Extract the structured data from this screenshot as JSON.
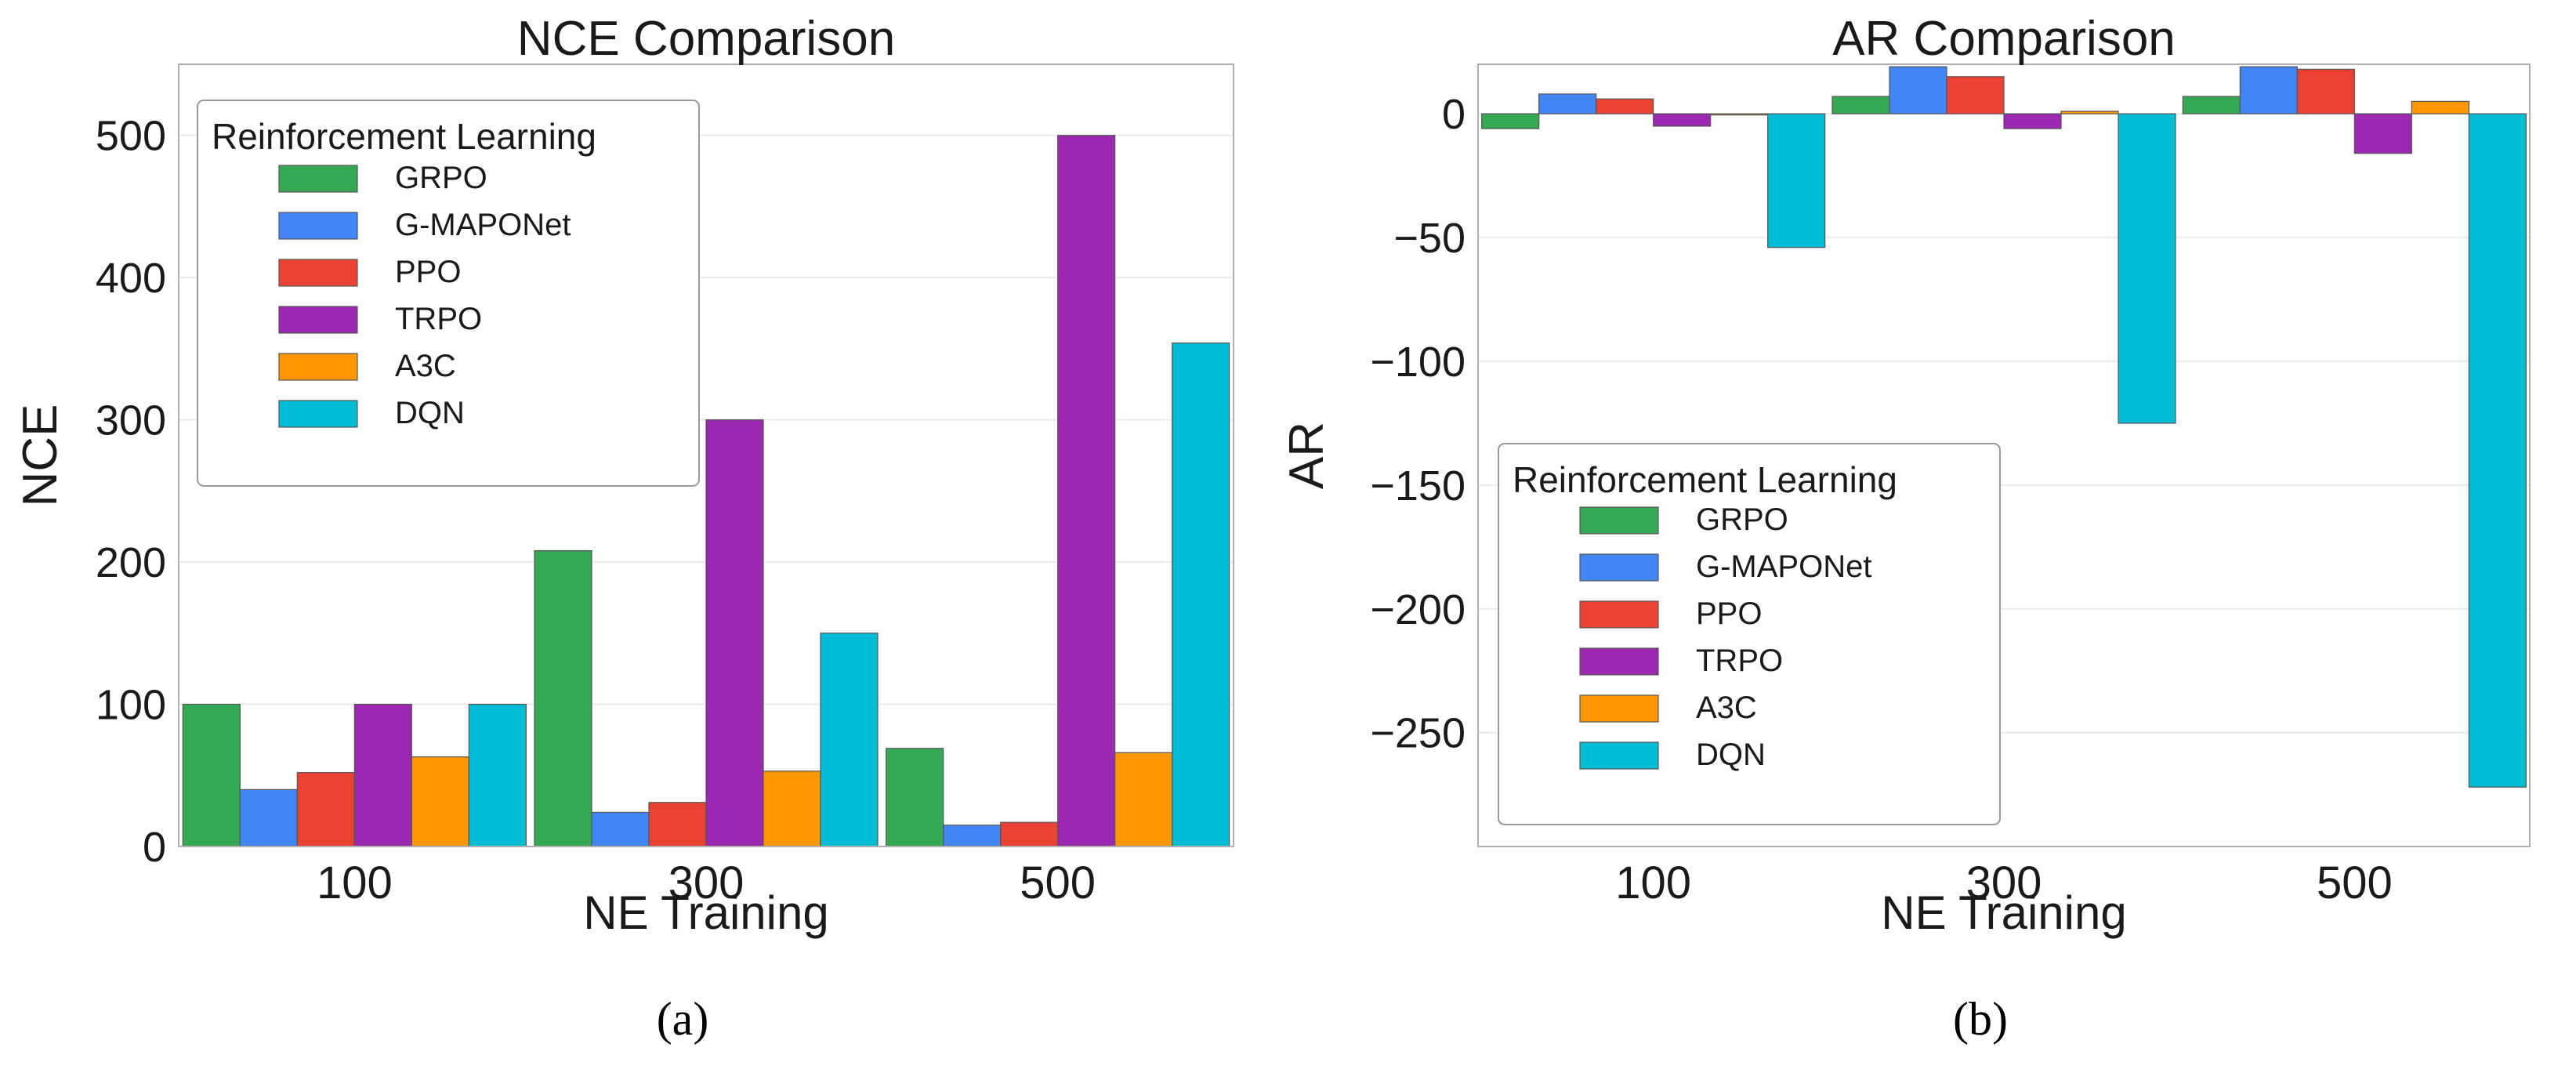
{
  "chart_data": [
    {
      "type": "bar",
      "title": "NCE Comparison",
      "xlabel": "NE Training",
      "ylabel": "NCE",
      "categories": [
        "100",
        "300",
        "500"
      ],
      "ylim": [
        0,
        550
      ],
      "yticks": [
        0,
        100,
        200,
        300,
        400,
        500
      ],
      "ytick_labels": [
        "0",
        "100",
        "200",
        "300",
        "400",
        "500"
      ],
      "grid": true,
      "legend_title": "Reinforcement Learning",
      "legend_position": "top-left",
      "subfigure_label": "(a)",
      "series": [
        {
          "name": "GRPO",
          "color": "#34a853",
          "values": [
            100,
            208,
            69
          ]
        },
        {
          "name": "G-MAPONet",
          "color": "#4285f4",
          "values": [
            40,
            24,
            15
          ]
        },
        {
          "name": "PPO",
          "color": "#ea4335",
          "values": [
            52,
            31,
            17
          ]
        },
        {
          "name": "TRPO",
          "color": "#9c27b0",
          "values": [
            100,
            300,
            500
          ]
        },
        {
          "name": "A3C",
          "color": "#ff9800",
          "values": [
            63,
            53,
            66
          ]
        },
        {
          "name": "DQN",
          "color": "#00bcd4",
          "values": [
            100,
            150,
            354
          ]
        }
      ]
    },
    {
      "type": "bar",
      "title": "AR Comparison",
      "xlabel": "NE Training",
      "ylabel": "AR",
      "categories": [
        "100",
        "300",
        "500"
      ],
      "ylim": [
        -296,
        20
      ],
      "yticks": [
        0,
        -50,
        -100,
        -150,
        -200,
        -250
      ],
      "ytick_labels": [
        "0",
        "−50",
        "−100",
        "−150",
        "−200",
        "−250"
      ],
      "grid": true,
      "legend_title": "Reinforcement Learning",
      "legend_position": "bottom-left",
      "subfigure_label": "(b)",
      "series": [
        {
          "name": "GRPO",
          "color": "#34a853",
          "values": [
            -6,
            7,
            7
          ]
        },
        {
          "name": "G-MAPONet",
          "color": "#4285f4",
          "values": [
            8,
            19,
            19
          ]
        },
        {
          "name": "PPO",
          "color": "#ea4335",
          "values": [
            6,
            15,
            18
          ]
        },
        {
          "name": "TRPO",
          "color": "#9c27b0",
          "values": [
            -5,
            -6,
            -16
          ]
        },
        {
          "name": "A3C",
          "color": "#ff9800",
          "values": [
            0,
            1,
            5
          ]
        },
        {
          "name": "DQN",
          "color": "#00bcd4",
          "values": [
            -54,
            -125,
            -272
          ]
        }
      ]
    }
  ]
}
